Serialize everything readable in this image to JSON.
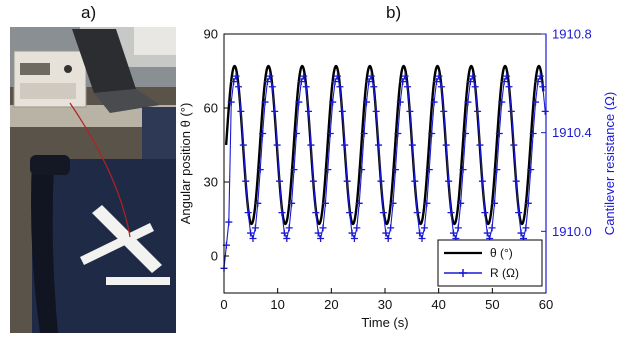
{
  "panels": {
    "a": "a)",
    "b": "b)"
  },
  "photo": {
    "description_icon": "lab-setup-photo"
  },
  "chart_data": {
    "type": "line",
    "xlabel": "Time (s)",
    "ylabel_left": "Angular position θ (°)",
    "ylabel_right": "Cantilever resistance (Ω)",
    "xlim": [
      0,
      60
    ],
    "ylim_left": [
      -15,
      90
    ],
    "ylim_right": [
      1909.75,
      1910.8
    ],
    "xticks": [
      0,
      10,
      20,
      30,
      40,
      50,
      60
    ],
    "yticks_left": [
      0,
      30,
      60,
      90
    ],
    "yticks_right": [
      "1910.0",
      "1910.4",
      "1910.8"
    ],
    "grid": false,
    "legend_position": "bottom-right",
    "colors": {
      "theta": "#000000",
      "R": "#1a1ad6",
      "right_axis": "#1a1ad6"
    },
    "series": [
      {
        "name": "θ (°)",
        "kind": "sine",
        "center": 45,
        "amplitude": 32,
        "period_s": 6.3,
        "start_s": 0.4,
        "x_range": [
          0.4,
          59.5
        ]
      },
      {
        "name": "R (Ω)",
        "kind": "sine",
        "center_ohm": 1910.3,
        "amplitude_ohm": 0.33,
        "period_s": 6.3,
        "start_s": 0.0,
        "x_range": [
          0.0,
          60
        ],
        "samples_per_period": 14
      }
    ]
  }
}
